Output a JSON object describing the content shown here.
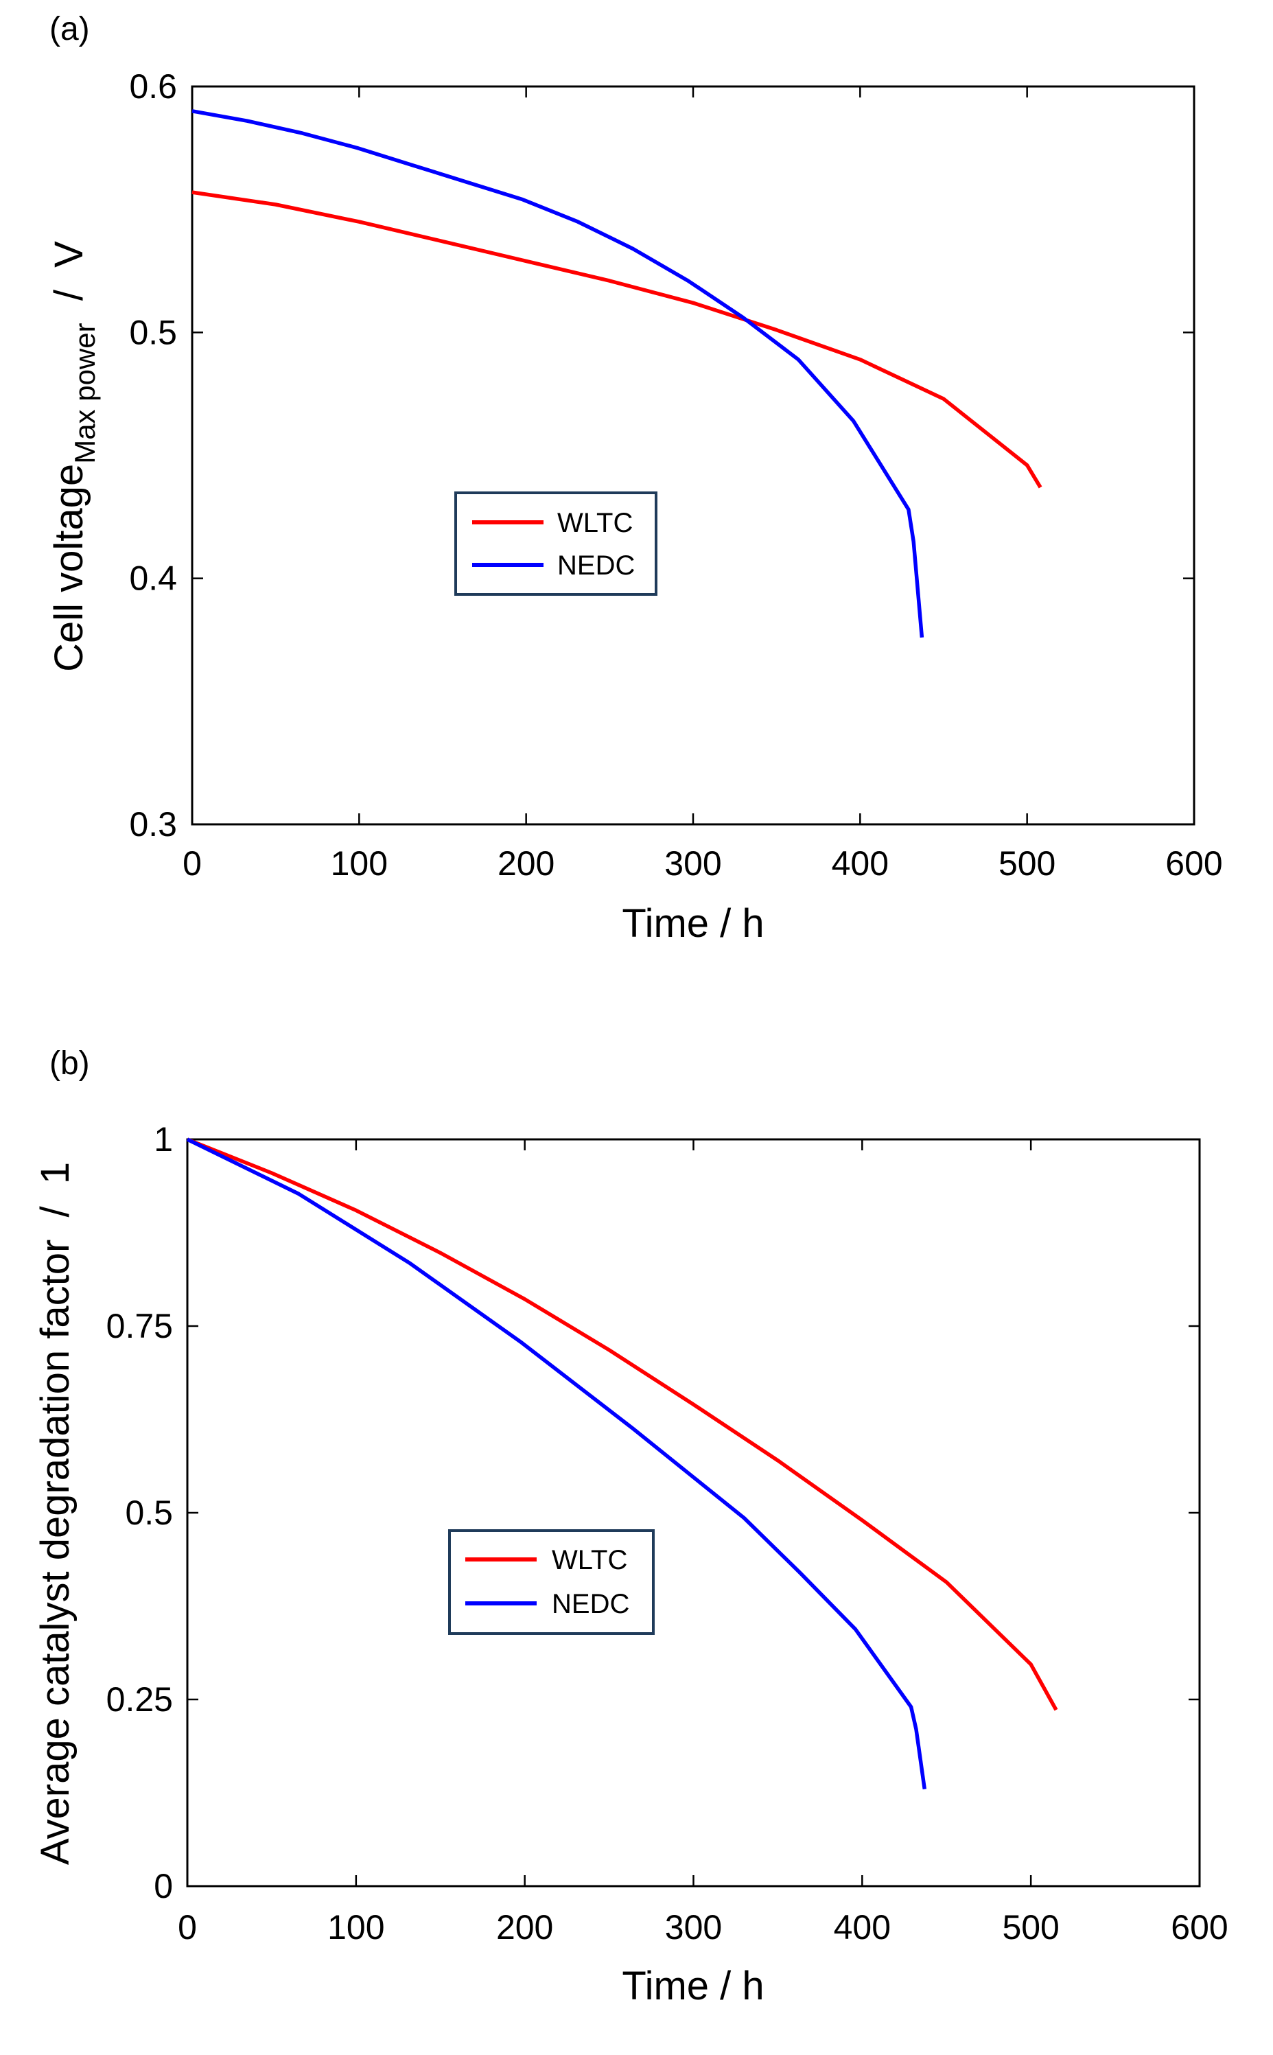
{
  "chart_data": [
    {
      "type": "line",
      "panel_label": "(a)",
      "title": "",
      "xlabel": "Time  /  h",
      "ylabel_main": "Cell voltage",
      "ylabel_sub": "Max power",
      "ylabel_unit": "  /  V",
      "xlim": [
        0,
        600
      ],
      "ylim": [
        0.3,
        0.6
      ],
      "xticks": [
        0,
        100,
        200,
        300,
        400,
        500,
        600
      ],
      "xtick_labels": [
        "0",
        "100",
        "200",
        "300",
        "400",
        "500",
        "600"
      ],
      "yticks": [
        0.3,
        0.4,
        0.5,
        0.6
      ],
      "ytick_labels": [
        "0.3",
        "0.4",
        "0.5",
        "0.6"
      ],
      "grid": false,
      "legend_position": "center-left",
      "series": [
        {
          "name": "WLTC",
          "color": "#ff0000",
          "x": [
            0,
            50,
            100,
            150,
            200,
            250,
            300,
            350,
            400,
            450,
            500,
            508
          ],
          "y": [
            0.557,
            0.552,
            0.545,
            0.537,
            0.529,
            0.521,
            0.512,
            0.501,
            0.489,
            0.473,
            0.446,
            0.437
          ]
        },
        {
          "name": "NEDC",
          "color": "#0000ff",
          "x": [
            0,
            33,
            66,
            99,
            132,
            165,
            198,
            231,
            264,
            297,
            330,
            363,
            396,
            429,
            432,
            437
          ],
          "y": [
            0.59,
            0.586,
            0.581,
            0.575,
            0.568,
            0.561,
            0.554,
            0.545,
            0.534,
            0.521,
            0.506,
            0.489,
            0.464,
            0.428,
            0.415,
            0.376
          ]
        }
      ]
    },
    {
      "type": "line",
      "panel_label": "(b)",
      "title": "",
      "xlabel": "Time  /  h",
      "ylabel_main": "Average catalyst degradation factor  /  1",
      "ylabel_sub": "",
      "ylabel_unit": "",
      "xlim": [
        0,
        600
      ],
      "ylim": [
        0,
        1
      ],
      "xticks": [
        0,
        100,
        200,
        300,
        400,
        500,
        600
      ],
      "xtick_labels": [
        "0",
        "100",
        "200",
        "300",
        "400",
        "500",
        "600"
      ],
      "yticks": [
        0,
        0.25,
        0.5,
        0.75,
        1
      ],
      "ytick_labels": [
        "0",
        "0.25",
        "0.5",
        "0.75",
        "1"
      ],
      "grid": false,
      "legend_position": "center-left",
      "series": [
        {
          "name": "WLTC",
          "color": "#ff0000",
          "x": [
            0,
            50,
            100,
            150,
            200,
            250,
            300,
            350,
            400,
            450,
            500,
            515
          ],
          "y": [
            1.0,
            0.955,
            0.905,
            0.848,
            0.786,
            0.718,
            0.645,
            0.57,
            0.49,
            0.407,
            0.297,
            0.236
          ]
        },
        {
          "name": "NEDC",
          "color": "#0000ff",
          "x": [
            0,
            66,
            132,
            198,
            264,
            330,
            363,
            396,
            429,
            432,
            437
          ],
          "y": [
            1.0,
            0.927,
            0.834,
            0.728,
            0.613,
            0.493,
            0.42,
            0.344,
            0.24,
            0.21,
            0.13
          ]
        }
      ]
    }
  ]
}
